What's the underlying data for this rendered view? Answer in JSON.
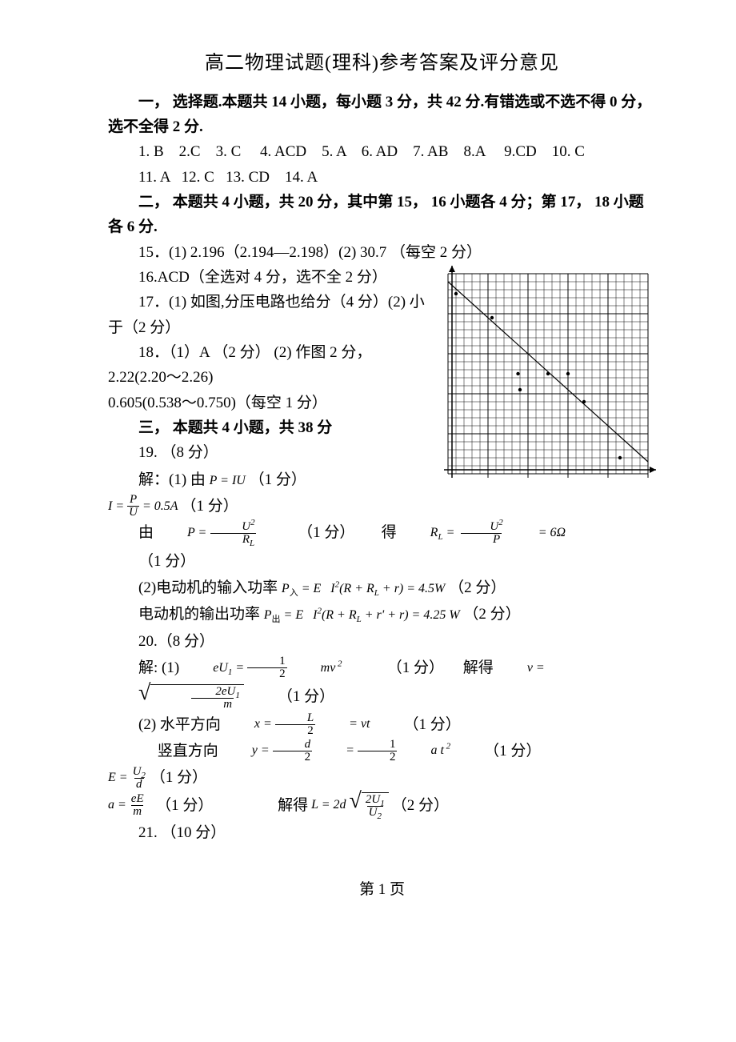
{
  "title": "高二物理试题(理科)参考答案及评分意见",
  "section1_head": "一， 选择题.本题共 14 小题，每小题 3 分，共 42 分.有错选或不选不得 0 分，选不全得 2 分.",
  "answers_line1": "1. B    2.C    3. C     4. ACD    5. A    6. AD    7. AB    8.A     9.CD    10. C",
  "answers_line2": "11. A   12. C   13. CD    14. A",
  "section2_head": "二， 本题共 4 小题，共 20 分，其中第 15， 16 小题各 4 分；第 17， 18 小题各 6 分.",
  "q15": "15．(1) 2.196（2.194—2.198）(2) 30.7  （每空 2 分）",
  "q16": "16.ACD（全选对 4 分，选不全 2 分）",
  "q17": "17．(1) 如图,分压电路也给分（4 分）(2) 小于（2 分）",
  "q18a": "18．（1）A （2 分）    (2)  作图 2 分，  2.22(2.20～2.26)",
  "q18b": "0.605(0.538～0.750)（每空 1 分）",
  "section3_head": "三， 本题共 4 小题，共 38 分",
  "q19_head": "19.  （8 分）",
  "q19_1_pre": "解：(1) 由",
  "q19_1_eq": "P = IU",
  "q19_1_suf": "  （1 分）",
  "q19_I_val": "= 0.5A",
  "q19_I_suf": "  （1 分）",
  "q19_PU2_pre": "由",
  "q19_PU2_suf": "  （1 分）       得",
  "q19_RL_val": "= 6Ω",
  "q19_RL_suf": "   （1 分）",
  "q19_2a_pre": "(2)电动机的输入功率",
  "q19_2a_eq": "P入 = E    I²(R + R_L + r) = 4.5W",
  "q19_2a_suf": "  （2 分）",
  "q19_2b_pre": "电动机的输出功率",
  "q19_2b_eq": "P出 = E    I²(R + R_L + r' + r) = 4.25 W",
  "q19_2b_suf": " （2 分）",
  "q20_head": "20.（8 分）",
  "q20_1_pre": "解: (1)",
  "q20_1_suf": "   （1 分）     解得",
  "q20_1_suf2": "  （1 分）",
  "q20_2_pre": "(2) 水平方向",
  "q20_2_suf": "   （1 分）",
  "q20_2b_pre": "     竖直方向",
  "q20_2b_suf": "  （1 分）",
  "q20_E_suf": "  （1 分）",
  "q20_a_suf": "  （1 分）                 解得",
  "q20_a_suf2": "  （2 分）",
  "q21": "21.  （10 分）",
  "page_num": "第 1 页",
  "chart": {
    "type": "scatter-line",
    "grid_cols_major": 5,
    "grid_minor_per_major": 5,
    "background_color": "#ffffff",
    "grid_color": "#000000",
    "grid_stroke": 0.5,
    "major_grid_stroke": 1,
    "line_color": "#000000",
    "line_width": 1.2,
    "marker_color": "#000000",
    "marker_radius": 2.2,
    "xlim": [
      0,
      1.0
    ],
    "ylim": [
      0,
      1.0
    ],
    "points": [
      [
        0.04,
        0.9
      ],
      [
        0.22,
        0.78
      ],
      [
        0.35,
        0.5
      ],
      [
        0.36,
        0.42
      ],
      [
        0.5,
        0.5
      ],
      [
        0.6,
        0.5
      ],
      [
        0.68,
        0.36
      ],
      [
        0.86,
        0.08
      ]
    ],
    "fit_line": [
      [
        0.0,
        0.96
      ],
      [
        1.0,
        0.06
      ]
    ],
    "y_axis_arrow": [
      [
        0.04,
        1.02
      ],
      [
        0.04,
        -0.02
      ]
    ],
    "x_axis_arrow": [
      [
        -0.02,
        0.04
      ],
      [
        1.02,
        0.04
      ]
    ]
  }
}
